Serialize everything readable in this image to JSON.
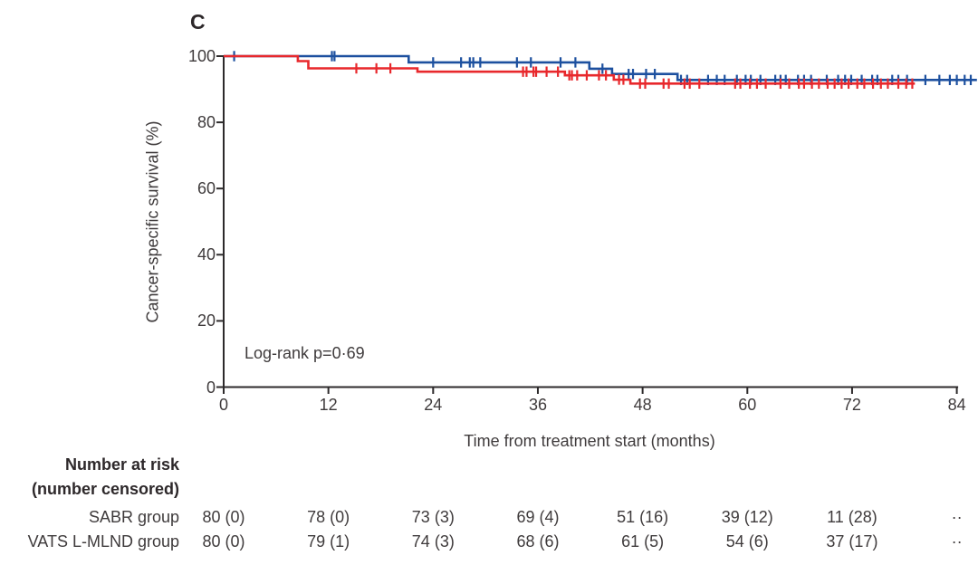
{
  "figure": {
    "panel_label": "C"
  },
  "colors": {
    "axis": "#2d2a2b",
    "text": "#3f3b3c",
    "sabr_blue": "#1d509f",
    "vats_red": "#e8282c"
  },
  "chart_data": {
    "type": "line",
    "subtype": "kaplan-meier-step-curve",
    "title": "",
    "xlabel": "Time from treatment start (months)",
    "ylabel": "Cancer-specific survival (%)",
    "xlim": [
      0,
      84
    ],
    "ylim": [
      0,
      100
    ],
    "xticks": [
      0,
      12,
      24,
      36,
      48,
      60,
      72,
      84
    ],
    "yticks": [
      0,
      20,
      40,
      60,
      80,
      100
    ],
    "grid": false,
    "annotation": "Log-rank p=0·69",
    "series": [
      {
        "name": "SABR group",
        "color": "#1d509f",
        "steps_month_percent": [
          [
            0,
            100
          ],
          [
            21.2,
            98.1
          ],
          [
            41.9,
            96.2
          ],
          [
            44.5,
            94.6
          ],
          [
            52.0,
            92.8
          ]
        ],
        "end_month": 86.3,
        "censor_months": [
          1.2,
          12.4,
          12.7,
          24.0,
          27.2,
          28.2,
          28.6,
          29.4,
          33.6,
          35.2,
          38.6,
          40.3,
          43.4,
          46.4,
          46.9,
          48.4,
          49.4,
          52.4,
          53.1,
          55.5,
          56.5,
          57.4,
          58.8,
          59.8,
          60.4,
          61.5,
          63.2,
          63.8,
          64.4,
          65.8,
          66.5,
          67.3,
          69.1,
          70.4,
          71.2,
          71.9,
          73.1,
          74.3,
          74.9,
          76.6,
          77.3,
          78.3,
          80.4,
          82.0,
          83.2,
          84.0,
          84.9,
          85.6
        ]
      },
      {
        "name": "VATS L-MLND group",
        "color": "#e8282c",
        "steps_month_percent": [
          [
            0,
            100
          ],
          [
            8.5,
            98.5
          ],
          [
            9.7,
            96.3
          ],
          [
            22.2,
            95.3
          ],
          [
            39.1,
            94.2
          ],
          [
            44.7,
            92.9
          ],
          [
            46.6,
            91.7
          ]
        ],
        "end_month": 79.2,
        "censor_months": [
          15.2,
          17.5,
          19.1,
          34.3,
          34.7,
          35.5,
          35.8,
          37.0,
          38.3,
          39.6,
          39.9,
          40.5,
          41.6,
          43.0,
          43.8,
          45.3,
          45.8,
          47.7,
          48.3,
          50.4,
          51.0,
          52.8,
          53.4,
          54.5,
          58.6,
          59.2,
          60.3,
          61.1,
          62.1,
          63.8,
          64.8,
          65.9,
          66.5,
          67.4,
          68.2,
          69.2,
          70.0,
          70.8,
          71.6,
          72.6,
          73.4,
          74.4,
          75.3,
          76.1,
          77.3,
          78.2,
          78.9
        ]
      }
    ],
    "risk_table": {
      "header_line1": "Number at risk",
      "header_line2": "(number censored)",
      "time_points": [
        0,
        12,
        24,
        36,
        48,
        60,
        72,
        84
      ],
      "rows": [
        {
          "label": "SABR group",
          "values": [
            "80 (0)",
            "78 (0)",
            "73 (3)",
            "69 (4)",
            "51 (16)",
            "39 (12)",
            "11 (28)",
            "··"
          ]
        },
        {
          "label": "VATS L-MLND group",
          "values": [
            "80 (0)",
            "79 (1)",
            "74 (3)",
            "68 (6)",
            "61 (5)",
            "54 (6)",
            "37 (17)",
            "··"
          ]
        }
      ]
    }
  }
}
